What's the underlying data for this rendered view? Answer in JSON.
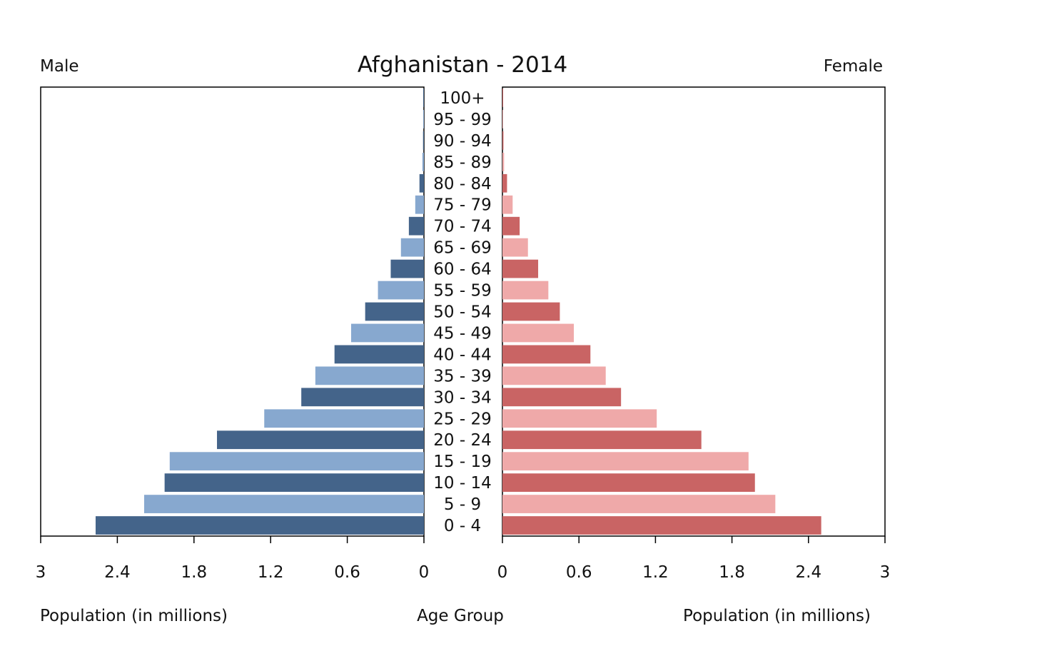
{
  "chart_data": {
    "type": "bar",
    "title": "Afghanistan - 2014",
    "left_label": "Male",
    "right_label": "Female",
    "center_xlabel": "Age Group",
    "xlabel_left": "Population (in millions)",
    "xlabel_right": "Population (in millions)",
    "xlim": [
      0,
      3
    ],
    "xticks": [
      "3",
      "2.4",
      "1.8",
      "1.2",
      "0.6",
      "0"
    ],
    "xticks_right": [
      "0",
      "0.6",
      "1.2",
      "1.8",
      "2.4",
      "3"
    ],
    "categories": [
      "100+",
      "95 - 99",
      "90 - 94",
      "85 - 89",
      "80 - 84",
      "75 - 79",
      "70 - 74",
      "65 - 69",
      "60 - 64",
      "55 - 59",
      "50 - 54",
      "45 - 49",
      "40 - 44",
      "35 - 39",
      "30 - 34",
      "25 - 29",
      "20 - 24",
      "15 - 19",
      "10 - 14",
      "5 - 9",
      "0 - 4"
    ],
    "series": [
      {
        "name": "Male",
        "colors": [
          "#44648a",
          "#87a8cf"
        ],
        "values": [
          0.002,
          0.004,
          0.007,
          0.012,
          0.035,
          0.068,
          0.118,
          0.18,
          0.26,
          0.36,
          0.46,
          0.57,
          0.7,
          0.85,
          0.96,
          1.25,
          1.62,
          1.99,
          2.03,
          2.19,
          2.57
        ]
      },
      {
        "name": "Female",
        "colors": [
          "#c96464",
          "#efa9a9"
        ],
        "values": [
          0.002,
          0.004,
          0.008,
          0.013,
          0.036,
          0.08,
          0.135,
          0.2,
          0.28,
          0.36,
          0.45,
          0.56,
          0.69,
          0.81,
          0.93,
          1.21,
          1.56,
          1.93,
          1.98,
          2.14,
          2.5
        ]
      }
    ],
    "grid": false,
    "legend": "none"
  }
}
